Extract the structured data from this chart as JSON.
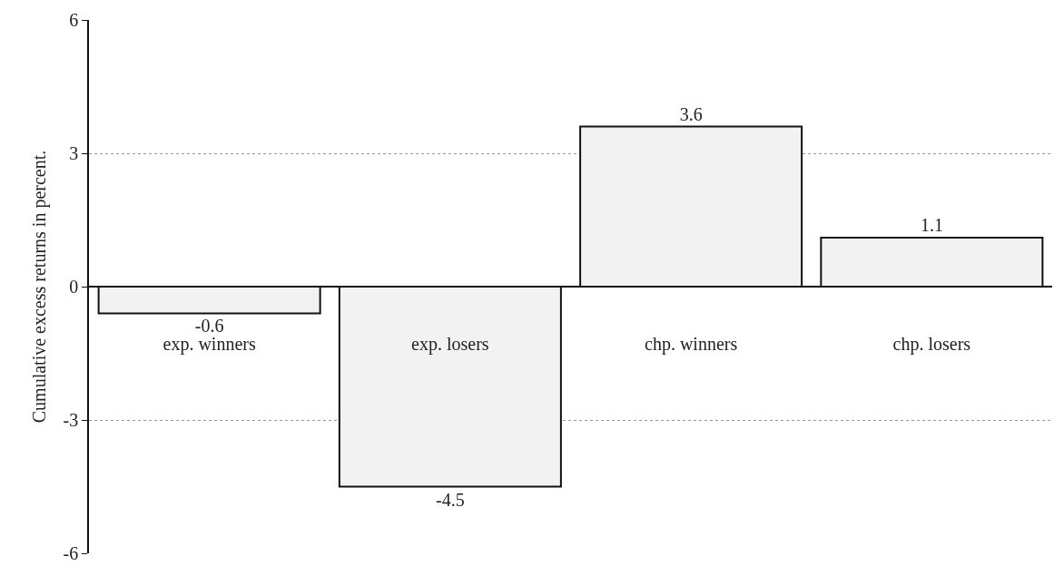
{
  "chart_data": {
    "type": "bar",
    "ylabel": "Cumulative excess returns in percent.",
    "categories": [
      "exp. winners",
      "exp. losers",
      "chp. winners",
      "chp. losers"
    ],
    "values": [
      -0.6,
      -4.5,
      3.6,
      1.1
    ],
    "color": "#f2f2f2",
    "ylim": [
      -6,
      6
    ],
    "yticks": [
      -6,
      -3,
      0,
      3,
      6
    ],
    "grid": "y",
    "data_labels": true,
    "legend": false
  }
}
